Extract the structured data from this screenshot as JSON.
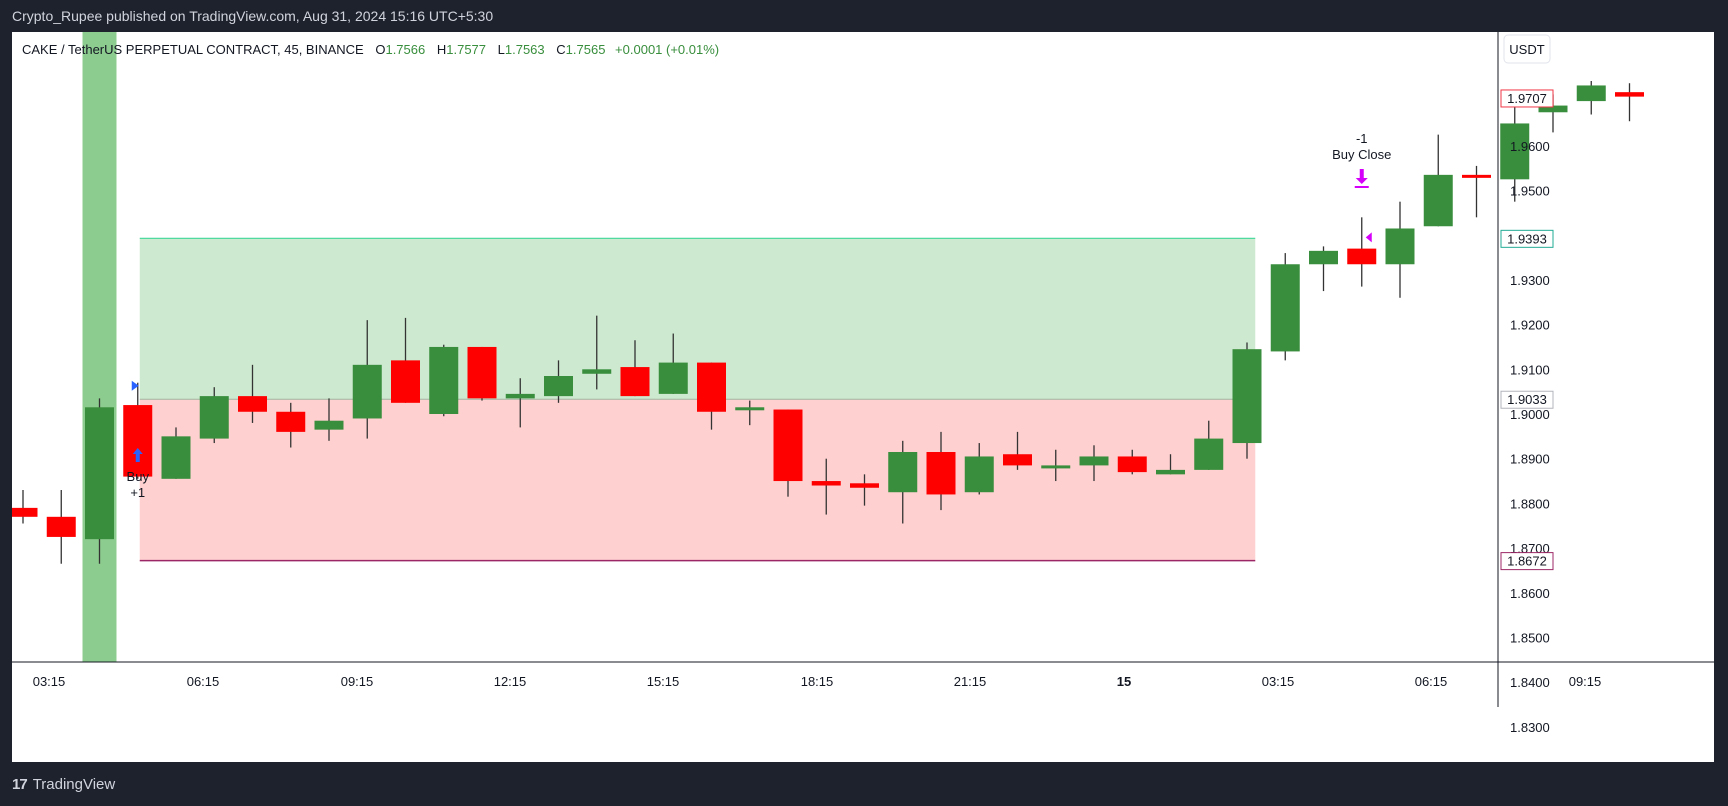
{
  "header": {
    "published": "Crypto_Rupee published on TradingView.com, Aug 31, 2024 15:16 UTC+5:30"
  },
  "legend": {
    "symbol": "CAKE / TetherUS PERPETUAL CONTRACT, 45, BINANCE",
    "o_label": "O",
    "o": "1.7566",
    "h_label": "H",
    "h": "1.7577",
    "l_label": "L",
    "l": "1.7563",
    "c_label": "C",
    "c": "1.7565",
    "change": "+0.0001 (+0.01%)"
  },
  "price_axis": {
    "currency": "USDT",
    "ticks": [
      "1.9600",
      "1.9500",
      "1.9300",
      "1.9200",
      "1.9100",
      "1.9000",
      "1.8900",
      "1.8800",
      "1.8700",
      "1.8600",
      "1.8500",
      "1.8400",
      "1.8300"
    ],
    "badges": [
      {
        "value": "1.9707",
        "color": "#f23645"
      },
      {
        "value": "1.9393",
        "color": "#22ab94"
      },
      {
        "value": "1.9033",
        "color": "#b2b5be"
      },
      {
        "value": "1.8672",
        "color": "#9c2766"
      }
    ]
  },
  "time_axis": {
    "ticks": [
      "03:15",
      "06:15",
      "09:15",
      "12:15",
      "15:15",
      "18:15",
      "21:15",
      "15",
      "03:15",
      "06:15",
      "09:15"
    ]
  },
  "annotations": {
    "buy_label": "Buy",
    "buy_qty": "+1",
    "close_qty": "-1",
    "close_label": "Buy Close"
  },
  "footer": {
    "brand": "TradingView"
  },
  "colors": {
    "up": "#388e3c",
    "down": "#ff0000",
    "profit_zone": "#cde9cf",
    "loss_zone": "#ffd0d0",
    "highlight_bar": "#8dcc8f",
    "buy_arrow": "#2962ff",
    "close_arrow": "#d500f9"
  },
  "chart_data": {
    "type": "candlestick",
    "title": "CAKE / TetherUS PERPETUAL CONTRACT, 45, BINANCE",
    "xlabel": "",
    "ylabel": "USDT",
    "ylim": [
      1.83,
      1.972
    ],
    "x_ticks": [
      "03:15",
      "06:15",
      "09:15",
      "12:15",
      "15:15",
      "18:15",
      "21:15",
      "15",
      "03:15",
      "06:15",
      "09:15"
    ],
    "candles": [
      {
        "o": 1.879,
        "h": 1.883,
        "l": 1.8755,
        "c": 1.877
      },
      {
        "o": 1.877,
        "h": 1.883,
        "l": 1.8665,
        "c": 1.8725
      },
      {
        "o": 1.872,
        "h": 1.9035,
        "l": 1.8665,
        "c": 1.9015
      },
      {
        "o": 1.902,
        "h": 1.907,
        "l": 1.8855,
        "c": 1.886
      },
      {
        "o": 1.8855,
        "h": 1.897,
        "l": 1.8855,
        "c": 1.895
      },
      {
        "o": 1.8945,
        "h": 1.906,
        "l": 1.8935,
        "c": 1.904
      },
      {
        "o": 1.904,
        "h": 1.911,
        "l": 1.898,
        "c": 1.9005
      },
      {
        "o": 1.9005,
        "h": 1.9025,
        "l": 1.8925,
        "c": 1.896
      },
      {
        "o": 1.8965,
        "h": 1.9035,
        "l": 1.894,
        "c": 1.8985
      },
      {
        "o": 1.899,
        "h": 1.921,
        "l": 1.8945,
        "c": 1.911
      },
      {
        "o": 1.912,
        "h": 1.9215,
        "l": 1.9025,
        "c": 1.9025
      },
      {
        "o": 1.9,
        "h": 1.9155,
        "l": 1.8995,
        "c": 1.915
      },
      {
        "o": 1.915,
        "h": 1.915,
        "l": 1.903,
        "c": 1.9035
      },
      {
        "o": 1.9035,
        "h": 1.908,
        "l": 1.897,
        "c": 1.9045
      },
      {
        "o": 1.904,
        "h": 1.912,
        "l": 1.9025,
        "c": 1.9085
      },
      {
        "o": 1.909,
        "h": 1.922,
        "l": 1.9055,
        "c": 1.91
      },
      {
        "o": 1.9105,
        "h": 1.9165,
        "l": 1.904,
        "c": 1.904
      },
      {
        "o": 1.9045,
        "h": 1.918,
        "l": 1.9045,
        "c": 1.9115
      },
      {
        "o": 1.9115,
        "h": 1.9115,
        "l": 1.8965,
        "c": 1.9005
      },
      {
        "o": 1.901,
        "h": 1.903,
        "l": 1.8975,
        "c": 1.9015
      },
      {
        "o": 1.901,
        "h": 1.901,
        "l": 1.8815,
        "c": 1.885
      },
      {
        "o": 1.885,
        "h": 1.89,
        "l": 1.8775,
        "c": 1.884
      },
      {
        "o": 1.8845,
        "h": 1.8865,
        "l": 1.8795,
        "c": 1.8835
      },
      {
        "o": 1.8825,
        "h": 1.894,
        "l": 1.8755,
        "c": 1.8915
      },
      {
        "o": 1.8915,
        "h": 1.896,
        "l": 1.8785,
        "c": 1.882
      },
      {
        "o": 1.8825,
        "h": 1.8935,
        "l": 1.882,
        "c": 1.8905
      },
      {
        "o": 1.891,
        "h": 1.896,
        "l": 1.8875,
        "c": 1.8885
      },
      {
        "o": 1.8885,
        "h": 1.892,
        "l": 1.885,
        "c": 1.8885
      },
      {
        "o": 1.8885,
        "h": 1.893,
        "l": 1.885,
        "c": 1.8905
      },
      {
        "o": 1.8905,
        "h": 1.892,
        "l": 1.8865,
        "c": 1.887
      },
      {
        "o": 1.8865,
        "h": 1.891,
        "l": 1.8865,
        "c": 1.8875
      },
      {
        "o": 1.8875,
        "h": 1.8985,
        "l": 1.8875,
        "c": 1.8945
      },
      {
        "o": 1.8935,
        "h": 1.916,
        "l": 1.89,
        "c": 1.9145
      },
      {
        "o": 1.914,
        "h": 1.936,
        "l": 1.912,
        "c": 1.9335
      },
      {
        "o": 1.9335,
        "h": 1.9375,
        "l": 1.9275,
        "c": 1.9365
      },
      {
        "o": 1.937,
        "h": 1.944,
        "l": 1.9285,
        "c": 1.9335
      },
      {
        "o": 1.9335,
        "h": 1.9475,
        "l": 1.926,
        "c": 1.9415
      },
      {
        "o": 1.942,
        "h": 1.9625,
        "l": 1.942,
        "c": 1.9535
      },
      {
        "o": 1.9535,
        "h": 1.9555,
        "l": 1.944,
        "c": 1.953
      },
      {
        "o": 1.9525,
        "h": 1.9715,
        "l": 1.9475,
        "c": 1.965
      },
      {
        "o": 1.9675,
        "h": 1.9715,
        "l": 1.963,
        "c": 1.969
      },
      {
        "o": 1.97,
        "h": 1.9745,
        "l": 1.967,
        "c": 1.9735
      },
      {
        "o": 1.972,
        "h": 1.974,
        "l": 1.9655,
        "c": 1.971
      }
    ],
    "position": {
      "entry": 1.9033,
      "take_profit": 1.9393,
      "stop_loss": 1.8672
    },
    "signals": [
      {
        "type": "Buy",
        "qty": "+1"
      },
      {
        "type": "Buy Close",
        "qty": "-1"
      }
    ]
  }
}
